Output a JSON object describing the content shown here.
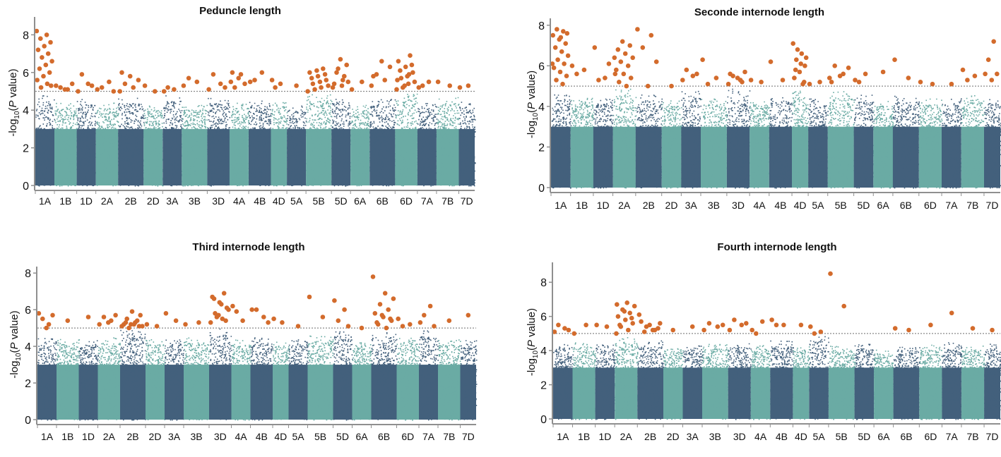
{
  "colors": {
    "dark": "#43607c",
    "teal": "#6aaba4",
    "sig": "#d36b2c",
    "threshold": "#8a8a8a",
    "axis": "#8f8f8f"
  },
  "chart_data": [
    {
      "type": "scatter",
      "subtype": "manhattan",
      "title": "Peduncle length",
      "ylabel": {
        "pre": "-log",
        "sub": "10",
        "mid": "(",
        "italic": "P",
        "post": " value)"
      },
      "ylim": [
        0,
        8.8
      ],
      "yticks": [
        0,
        2,
        4,
        6,
        8
      ],
      "threshold": 5,
      "chromosomes": [
        "1A",
        "1B",
        "1D",
        "2A",
        "2B",
        "2D",
        "3A",
        "3B",
        "3D",
        "4A",
        "4B",
        "4D",
        "5A",
        "5B",
        "5D",
        "6A",
        "6B",
        "6D",
        "7A",
        "7B",
        "7D"
      ],
      "chrom_sizes": [
        6,
        7,
        6,
        7,
        8,
        6,
        6,
        8,
        7,
        6,
        7,
        5,
        6,
        8,
        6,
        6,
        8,
        7,
        6,
        7,
        5
      ],
      "chrom_peaks": [
        4.8,
        4.4,
        4.6,
        4.4,
        4.7,
        4.3,
        4.8,
        4.3,
        4.7,
        4.4,
        4.6,
        4.5,
        4.3,
        4.9,
        4.8,
        4.3,
        4.6,
        4.9,
        4.4,
        4.7,
        4.5
      ],
      "significant": {
        "1A": [
          8.2,
          8.0,
          7.8,
          7.6,
          7.4,
          7.2,
          7.0,
          6.8,
          6.6,
          6.4,
          6.2,
          6.0,
          5.8,
          5.6,
          5.4,
          5.2,
          5.3
        ],
        "1B": [
          5.3,
          5.1,
          5.2,
          5.4,
          5.1
        ],
        "1D": [
          5.0,
          5.4,
          5.9,
          5.3
        ],
        "2A": [
          5.1,
          5.5,
          5.2,
          5.0
        ],
        "2B": [
          5.0,
          5.2,
          5.4,
          5.6,
          5.8,
          6.0
        ],
        "2D": [
          5.3,
          5.0
        ],
        "3A": [
          5.0,
          5.1,
          5.2
        ],
        "3B": [
          5.3,
          5.5,
          5.7
        ],
        "3D": [
          5.1,
          5.4,
          5.9,
          5.2
        ],
        "4A": [
          5.5,
          5.9,
          5.2,
          5.4,
          5.7,
          6.0
        ],
        "4B": [
          5.5,
          6.0,
          5.6
        ],
        "4D": [
          5.6,
          5.4,
          5.2
        ],
        "5A": [
          5.3
        ],
        "5B": [
          5.0,
          5.2,
          5.4,
          5.6,
          5.8,
          6.0,
          6.2,
          5.1,
          5.3,
          5.5,
          5.7,
          5.9,
          6.1
        ],
        "5D": [
          5.2,
          5.6,
          6.0,
          6.4,
          6.7,
          5.4,
          5.8,
          6.2,
          5.5,
          5.3
        ],
        "6A": [
          5.1,
          5.5
        ],
        "6B": [
          5.3,
          5.6,
          5.9,
          6.3,
          6.6,
          5.8
        ],
        "6D": [
          5.1,
          5.4,
          5.7,
          6.0,
          6.3,
          6.6,
          6.9,
          5.2,
          5.5,
          5.8,
          6.1,
          6.4,
          5.3,
          5.6,
          5.9
        ],
        "7A": [
          5.2,
          5.5,
          5.3
        ],
        "7B": [
          5.5,
          5.3
        ],
        "7D": [
          5.2,
          5.3
        ]
      }
    },
    {
      "type": "scatter",
      "subtype": "manhattan",
      "title": "Seconde internode length",
      "ylabel": {
        "pre": "-log",
        "sub": "10",
        "mid": "(",
        "italic": "P",
        "post": " value)"
      },
      "ylim": [
        0,
        8.2
      ],
      "yticks": [
        0,
        2,
        4,
        6,
        8
      ],
      "threshold": 5,
      "chromosomes": [
        "1A",
        "1B",
        "1D",
        "2A",
        "2B",
        "2D",
        "3A",
        "3B",
        "3D",
        "4A",
        "4B",
        "4D",
        "5A",
        "5B",
        "5D",
        "6A",
        "6B",
        "6D",
        "7A",
        "7B",
        "7D"
      ],
      "chrom_sizes": [
        6,
        7,
        6,
        7,
        8,
        6,
        6,
        8,
        7,
        6,
        7,
        5,
        6,
        8,
        6,
        6,
        8,
        7,
        6,
        7,
        5
      ],
      "chrom_peaks": [
        4.6,
        4.5,
        4.4,
        4.9,
        4.6,
        4.3,
        4.8,
        4.4,
        4.9,
        4.4,
        4.5,
        4.8,
        4.4,
        4.8,
        4.6,
        4.3,
        4.6,
        4.4,
        4.5,
        4.6,
        4.4
      ],
      "significant": {
        "1A": [
          6.1,
          5.1,
          5.3,
          5.5,
          5.7,
          5.9,
          6.1,
          6.3,
          6.5,
          6.7,
          6.9,
          7.1,
          7.3,
          7.5,
          7.7,
          7.8,
          7.6,
          7.4
        ],
        "1B": [
          6.0,
          5.8,
          5.6
        ],
        "1D": [
          6.9,
          5.4,
          5.3,
          6.1
        ],
        "2A": [
          6.4,
          5.0,
          5.2,
          5.4,
          5.6,
          5.8,
          6.0,
          6.2,
          6.4,
          6.6,
          6.8,
          7.0,
          7.2,
          5.6
        ],
        "2B": [
          7.8,
          7.5,
          6.9,
          6.2,
          5.0
        ],
        "2D": [
          5.0
        ],
        "3A": [
          5.3,
          5.5,
          5.8,
          5.6
        ],
        "3B": [
          6.3,
          5.4,
          5.1
        ],
        "3D": [
          5.1,
          5.3,
          5.5,
          5.7,
          5.4,
          5.6,
          5.2
        ],
        "4A": [
          5.3,
          5.2
        ],
        "4B": [
          6.2,
          5.3
        ],
        "4D": [
          7.1,
          6.6,
          6.3,
          6.0,
          5.7,
          5.4,
          5.1,
          6.8,
          6.4,
          6.1,
          5.8,
          5.2
        ],
        "5A": [
          5.1,
          5.2
        ],
        "5B": [
          5.4,
          5.6,
          6.0,
          5.9,
          5.5,
          5.2
        ],
        "5D": [
          5.3,
          5.6,
          5.2
        ],
        "6A": [
          5.7
        ],
        "6B": [
          6.3,
          5.4
        ],
        "6D": [
          5.2,
          5.1
        ],
        "7A": [
          5.1
        ],
        "7B": [
          5.8,
          5.5,
          5.3
        ],
        "7D": [
          5.6,
          7.2,
          6.3,
          5.6,
          5.3
        ]
      }
    },
    {
      "type": "scatter",
      "subtype": "manhattan",
      "title": "Third internode length",
      "ylabel": {
        "pre": "-log",
        "sub": "10",
        "mid": "(",
        "italic": "P",
        "post": " value)"
      },
      "ylim": [
        0,
        8.2
      ],
      "yticks": [
        0,
        2,
        4,
        6,
        8
      ],
      "threshold": 5,
      "chromosomes": [
        "1A",
        "1B",
        "1D",
        "2A",
        "2B",
        "2D",
        "3A",
        "3B",
        "3D",
        "4A",
        "4B",
        "4D",
        "5A",
        "5B",
        "5D",
        "6A",
        "6B",
        "6D",
        "7A",
        "7B",
        "7D"
      ],
      "chrom_sizes": [
        6,
        7,
        6,
        7,
        8,
        6,
        6,
        8,
        7,
        6,
        7,
        5,
        6,
        8,
        6,
        6,
        8,
        7,
        6,
        7,
        5
      ],
      "chrom_peaks": [
        4.6,
        4.4,
        4.4,
        4.5,
        4.9,
        4.4,
        4.4,
        4.5,
        5.0,
        4.4,
        4.5,
        4.3,
        4.4,
        4.6,
        4.9,
        4.3,
        4.8,
        4.5,
        4.9,
        4.4,
        4.4
      ],
      "significant": {
        "1A": [
          5.8,
          5.2,
          5.5,
          5.7,
          5.0
        ],
        "1B": [
          5.4
        ],
        "1D": [
          5.6
        ],
        "2A": [
          5.2,
          5.4,
          5.6,
          5.7,
          5.3
        ],
        "2B": [
          5.1,
          5.3,
          5.5,
          5.7,
          5.9,
          5.2,
          5.4,
          5.0,
          5.1,
          5.2,
          5.3,
          5.1,
          5.2
        ],
        "2D": [
          5.2,
          5.1
        ],
        "3A": [
          5.8,
          5.4
        ],
        "3B": [
          5.2,
          5.3
        ],
        "3D": [
          5.3,
          5.5,
          5.8,
          6.1,
          6.4,
          6.7,
          6.9,
          5.6,
          6.0,
          6.3,
          6.6,
          5.4,
          5.7
        ],
        "4A": [
          6.2,
          5.4,
          5.9
        ],
        "4B": [
          6.0,
          5.6,
          6.0,
          5.3
        ],
        "4D": [
          5.5,
          5.3
        ],
        "5A": [
          5.1
        ],
        "5B": [
          6.7,
          5.6
        ],
        "5D": [
          6.5,
          6.0,
          5.4,
          5.1
        ],
        "6A": [
          5.0
        ],
        "6B": [
          7.8,
          5.0,
          5.2,
          5.4,
          5.6,
          5.8,
          6.0,
          6.3,
          6.6,
          6.9,
          5.3,
          5.5,
          5.7
        ],
        "6D": [
          5.5,
          5.2,
          5.1
        ],
        "7A": [
          5.3,
          6.2,
          5.7,
          5.1
        ],
        "7B": [
          5.4
        ],
        "7D": [
          5.7
        ]
      }
    },
    {
      "type": "scatter",
      "subtype": "manhattan",
      "title": "Fourth internode length",
      "ylabel": {
        "pre": "-log",
        "sub": "10",
        "mid": "(",
        "italic": "P",
        "post": " value)"
      },
      "ylim": [
        0,
        9.0
      ],
      "yticks": [
        0,
        2,
        4,
        6,
        8
      ],
      "threshold": 5,
      "chromosomes": [
        "1A",
        "1B",
        "1D",
        "2A",
        "2B",
        "2D",
        "3A",
        "3B",
        "3D",
        "4A",
        "4B",
        "4D",
        "5A",
        "5B",
        "5D",
        "6A",
        "6B",
        "6D",
        "7A",
        "7B",
        "7D"
      ],
      "chrom_sizes": [
        6,
        7,
        6,
        7,
        8,
        6,
        6,
        8,
        7,
        6,
        7,
        5,
        6,
        8,
        6,
        6,
        8,
        7,
        6,
        7,
        5
      ],
      "chrom_peaks": [
        4.4,
        4.5,
        4.4,
        4.8,
        4.6,
        4.2,
        4.3,
        4.4,
        4.5,
        4.4,
        4.6,
        4.3,
        4.9,
        4.3,
        4.4,
        4.1,
        4.3,
        4.4,
        4.5,
        4.3,
        4.4
      ],
      "significant": {
        "1A": [
          5.1,
          5.3,
          5.5,
          5.2
        ],
        "1B": [
          5.0,
          5.5
        ],
        "1D": [
          5.5,
          5.4
        ],
        "2A": [
          5.0,
          5.2,
          5.4,
          5.6,
          5.8,
          6.0,
          6.2,
          6.4,
          6.6,
          6.8,
          5.5,
          5.9,
          6.3,
          6.7
        ],
        "2B": [
          6.1,
          5.2,
          5.1,
          5.3,
          5.5,
          5.7,
          5.2,
          5.4,
          5.6
        ],
        "2D": [
          5.2
        ],
        "3A": [
          5.4
        ],
        "3B": [
          5.2,
          5.4,
          5.6,
          5.5
        ],
        "3D": [
          5.2,
          5.5,
          5.8,
          5.6
        ],
        "4A": [
          5.2,
          5.7,
          5.0
        ],
        "4B": [
          5.8,
          5.5,
          5.5
        ],
        "4D": [
          5.5
        ],
        "5A": [
          5.4,
          5.1,
          5.0
        ],
        "5B": [
          8.5,
          6.6
        ],
        "5D": [],
        "6A": [],
        "6B": [
          5.3,
          5.2
        ],
        "6D": [
          5.5
        ],
        "7A": [
          6.2
        ],
        "7B": [
          5.3
        ],
        "7D": [
          5.2
        ]
      }
    }
  ]
}
